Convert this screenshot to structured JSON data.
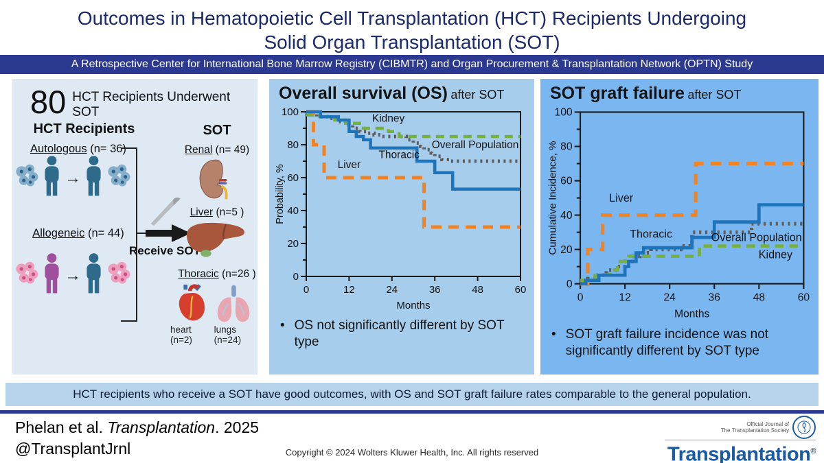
{
  "header": {
    "title_line1": "Outcomes in Hematopoietic Cell Transplantation (HCT) Recipients Undergoing",
    "title_line2": "Solid Organ Transplantation (SOT)",
    "banner": "A Retrospective Center for International Bone Marrow Registry (CIBMTR) and Organ Procurement & Transplantation Network (OPTN) Study"
  },
  "left_panel": {
    "big_number": "80",
    "headline": "HCT Recipients Underwent SOT",
    "hct_heading": "HCT Recipients",
    "sot_heading": "SOT",
    "autologous_label": "Autologous",
    "autologous_n": " (n= 36)",
    "allogeneic_label": "Allogeneic",
    "allogeneic_n": " (n= 44)",
    "receive_sot": "Receive SOT",
    "renal_label": "Renal",
    "renal_n": " (n= 49)",
    "liver_label": "Liver",
    "liver_n": " (n=5 )",
    "thoracic_label": "Thoracic",
    "thoracic_n": " (n=26 )",
    "heart_caption": "heart (n=2)",
    "lungs_caption": "lungs (n=24)"
  },
  "chart_data": [
    {
      "type": "line",
      "title": "Overall survival (OS)",
      "title_suffix": "after SOT",
      "xlabel": "Months",
      "ylabel": "Probability, %",
      "xlim": [
        0,
        60
      ],
      "ylim": [
        0,
        100
      ],
      "xticks": [
        0,
        12,
        24,
        36,
        48,
        60
      ],
      "ytick_major": 20,
      "ytick_minor": 10,
      "grid": false,
      "legend_position": "on-plot-labels",
      "note": "OS not significantly different by SOT type",
      "series": [
        {
          "name": "Overall Population",
          "color": "#5d5d5d",
          "dash": "3 5.5",
          "width": 5,
          "points": [
            [
              0,
              99
            ],
            [
              3,
              99
            ],
            [
              3,
              97
            ],
            [
              6,
              97
            ],
            [
              6,
              96
            ],
            [
              9,
              96
            ],
            [
              9,
              94
            ],
            [
              11,
              94
            ],
            [
              11,
              92
            ],
            [
              13,
              92
            ],
            [
              13,
              90
            ],
            [
              15,
              90
            ],
            [
              15,
              88
            ],
            [
              17,
              88
            ],
            [
              17,
              87
            ],
            [
              19,
              87
            ],
            [
              19,
              86
            ],
            [
              21,
              86
            ],
            [
              21,
              85
            ],
            [
              28,
              85
            ],
            [
              28,
              83
            ],
            [
              30,
              83
            ],
            [
              30,
              81
            ],
            [
              32,
              81
            ],
            [
              32,
              79
            ],
            [
              33,
              79
            ],
            [
              33,
              77
            ],
            [
              35,
              77
            ],
            [
              35,
              75
            ],
            [
              36,
              75
            ],
            [
              36,
              73
            ],
            [
              38,
              73
            ],
            [
              38,
              71
            ],
            [
              40,
              71
            ],
            [
              40,
              70
            ],
            [
              60,
              70
            ]
          ]
        },
        {
          "name": "Kidney",
          "color": "#76b041",
          "dash": "12 8",
          "width": 4.5,
          "points": [
            [
              0,
              98
            ],
            [
              3,
              98
            ],
            [
              3,
              97
            ],
            [
              8,
              97
            ],
            [
              8,
              95
            ],
            [
              11,
              95
            ],
            [
              11,
              93
            ],
            [
              16,
              93
            ],
            [
              16,
              90
            ],
            [
              23,
              90
            ],
            [
              23,
              88
            ],
            [
              26,
              88
            ],
            [
              26,
              85
            ],
            [
              60,
              85
            ]
          ]
        },
        {
          "name": "Liver",
          "color": "#f28222",
          "dash": "15 10",
          "width": 5,
          "points": [
            [
              0,
              100
            ],
            [
              2,
              100
            ],
            [
              2,
              80
            ],
            [
              5,
              80
            ],
            [
              5,
              60
            ],
            [
              33,
              60
            ],
            [
              33,
              30
            ],
            [
              60,
              30
            ]
          ]
        },
        {
          "name": "Thoracic",
          "color": "#1e74bb",
          "dash": null,
          "width": 4.5,
          "points": [
            [
              0,
              100
            ],
            [
              4,
              100
            ],
            [
              4,
              97
            ],
            [
              9,
              97
            ],
            [
              9,
              95
            ],
            [
              12,
              95
            ],
            [
              12,
              88
            ],
            [
              14,
              88
            ],
            [
              14,
              85
            ],
            [
              16,
              85
            ],
            [
              16,
              83
            ],
            [
              18,
              83
            ],
            [
              18,
              78
            ],
            [
              31,
              78
            ],
            [
              31,
              70
            ],
            [
              36,
              70
            ],
            [
              36,
              63
            ],
            [
              41,
              63
            ],
            [
              41,
              53
            ],
            [
              60,
              53
            ]
          ]
        }
      ],
      "annotations": [
        {
          "text": "Kidney",
          "x": 23,
          "y": 96,
          "anchor": "middle"
        },
        {
          "text": "Overall Population",
          "x": 59.5,
          "y": 80,
          "anchor": "end"
        },
        {
          "text": "Thoracic",
          "x": 26,
          "y": 74,
          "anchor": "middle"
        },
        {
          "text": "Liver",
          "x": 12,
          "y": 68,
          "anchor": "middle"
        }
      ]
    },
    {
      "type": "line",
      "title": "SOT graft failure",
      "title_suffix": "after SOT",
      "xlabel": "Months",
      "ylabel": "Cumulative Incidence, %",
      "xlim": [
        0,
        60
      ],
      "ylim": [
        0,
        100
      ],
      "xticks": [
        0,
        12,
        24,
        36,
        48,
        60
      ],
      "ytick_major": 20,
      "ytick_minor": 10,
      "grid": false,
      "legend_position": "on-plot-labels",
      "note": "SOT graft failure incidence was not significantly different by SOT type",
      "series": [
        {
          "name": "Overall Population",
          "color": "#5d5d5d",
          "dash": "3 5.5",
          "width": 5,
          "points": [
            [
              0,
              0
            ],
            [
              2,
              0
            ],
            [
              2,
              3
            ],
            [
              4,
              3
            ],
            [
              4,
              5
            ],
            [
              7,
              5
            ],
            [
              7,
              8
            ],
            [
              10,
              8
            ],
            [
              10,
              10
            ],
            [
              12,
              10
            ],
            [
              12,
              13
            ],
            [
              14,
              13
            ],
            [
              14,
              16
            ],
            [
              16,
              16
            ],
            [
              16,
              18
            ],
            [
              19,
              18
            ],
            [
              19,
              20
            ],
            [
              27,
              20
            ],
            [
              27,
              22
            ],
            [
              30,
              22
            ],
            [
              30,
              30
            ],
            [
              46,
              30
            ],
            [
              46,
              35
            ],
            [
              60,
              35
            ]
          ]
        },
        {
          "name": "Kidney",
          "color": "#76b041",
          "dash": "12 8",
          "width": 4.5,
          "points": [
            [
              0,
              2
            ],
            [
              4,
              2
            ],
            [
              4,
              5
            ],
            [
              8,
              5
            ],
            [
              8,
              8
            ],
            [
              10,
              8
            ],
            [
              10,
              13
            ],
            [
              13,
              13
            ],
            [
              13,
              16
            ],
            [
              32,
              16
            ],
            [
              32,
              22
            ],
            [
              60,
              22
            ]
          ]
        },
        {
          "name": "Liver",
          "color": "#f28222",
          "dash": "15 10",
          "width": 5,
          "points": [
            [
              0,
              0
            ],
            [
              2,
              0
            ],
            [
              2,
              20
            ],
            [
              6,
              20
            ],
            [
              6,
              40
            ],
            [
              31,
              40
            ],
            [
              31,
              70
            ],
            [
              60,
              70
            ]
          ]
        },
        {
          "name": "Thoracic",
          "color": "#1e74bb",
          "dash": null,
          "width": 4.5,
          "points": [
            [
              0,
              0
            ],
            [
              1.5,
              0
            ],
            [
              1.5,
              2
            ],
            [
              5,
              2
            ],
            [
              5,
              5
            ],
            [
              12,
              5
            ],
            [
              12,
              10
            ],
            [
              13,
              10
            ],
            [
              13,
              13
            ],
            [
              15,
              13
            ],
            [
              15,
              18
            ],
            [
              17,
              18
            ],
            [
              17,
              21
            ],
            [
              30,
              21
            ],
            [
              30,
              27
            ],
            [
              36,
              27
            ],
            [
              36,
              36
            ],
            [
              48,
              36
            ],
            [
              48,
              46
            ],
            [
              60,
              46
            ]
          ]
        }
      ],
      "annotations": [
        {
          "text": "Liver",
          "x": 11,
          "y": 50,
          "anchor": "middle"
        },
        {
          "text": "Thoracic",
          "x": 19,
          "y": 29,
          "anchor": "middle"
        },
        {
          "text": "Overall Population",
          "x": 59.5,
          "y": 27,
          "anchor": "end"
        },
        {
          "text": "Kidney",
          "x": 57,
          "y": 17,
          "anchor": "end"
        }
      ]
    }
  ],
  "summary": "HCT recipients who receive a SOT have good outcomes, with OS and SOT graft failure rates comparable to the general population.",
  "footer": {
    "citation_prefix": "Phelan et al. ",
    "citation_journal": "Transplantation",
    "citation_suffix": ". 2025",
    "handle": "@TransplantJrnl",
    "copyright": "Copyright © 2024 Wolters Kluwer Health, Inc. All rights reserved",
    "logo": {
      "tagline_line1": "Official Journal of",
      "tagline_line2": "The Transplantation Society",
      "name": "Transplantation",
      "reg": "®"
    }
  },
  "colors": {
    "title_navy": "#1b2a6b",
    "banner_blue": "#2b3991",
    "left_panel_bg": "#dfe9f4",
    "mid_panel_bg": "#a7cdec",
    "right_panel_bg": "#7ab7f1",
    "summary_bg": "#b7d3ea",
    "kidney_green": "#76b041",
    "liver_orange": "#f28222",
    "thoracic_blue": "#1e74bb",
    "overall_gray": "#5d5d5d",
    "logo_blue": "#1b5aa5"
  }
}
